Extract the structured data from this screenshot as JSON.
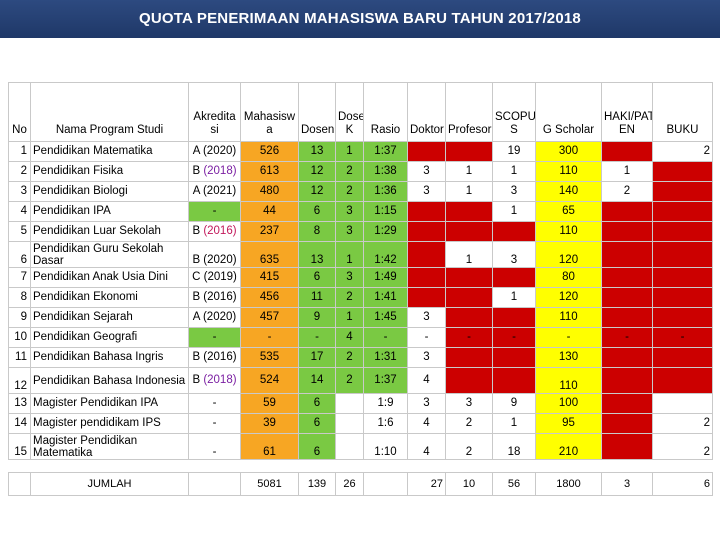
{
  "title": "QUOTA PENERIMAAN MAHASISWA BARU TAHUN 2017/2018",
  "headers": {
    "no": "No",
    "nama": "Nama Program Studi",
    "akreditasi": "Akredita si",
    "mahasiswa": "Mahasisw a",
    "dosen": "Dosen",
    "dosen_k": "Dosen K",
    "rasio": "Rasio",
    "doktor": "Doktor",
    "profesor": "Profesor",
    "scopus": "SCOPU S",
    "gscholar": "G Scholar",
    "hakipaten": "HAKI/PAT EN",
    "buku": "BUKU"
  },
  "rows": [
    {
      "no": "1",
      "nama": "Pendidikan Matematika",
      "akr": "A (2020)",
      "mhs": "526",
      "dosen": "13",
      "dk": "1",
      "rasio": "1:37",
      "doktor": "",
      "prof": "",
      "scopus": "19",
      "gs": "300",
      "haki": "",
      "buku": "2"
    },
    {
      "no": "2",
      "nama": "Pendidikan Fisika",
      "akr": "B (2018)",
      "mhs": "613",
      "dosen": "12",
      "dk": "2",
      "rasio": "1:38",
      "doktor": "3",
      "prof": "1",
      "scopus": "1",
      "gs": "110",
      "haki": "1",
      "buku": ""
    },
    {
      "no": "3",
      "nama": "Pendidikan Biologi",
      "akr": "A (2021)",
      "mhs": "480",
      "dosen": "12",
      "dk": "2",
      "rasio": "1:36",
      "doktor": "3",
      "prof": "1",
      "scopus": "3",
      "gs": "140",
      "haki": "2",
      "buku": ""
    },
    {
      "no": "4",
      "nama": "Pendidikan IPA",
      "akr": "-",
      "mhs": "44",
      "dosen": "6",
      "dk": "3",
      "rasio": "1:15",
      "doktor": "",
      "prof": "",
      "scopus": "1",
      "gs": "65",
      "haki": "",
      "buku": ""
    },
    {
      "no": "5",
      "nama": "Pendidikan Luar Sekolah",
      "akr": "B (2016)",
      "mhs": "237",
      "dosen": "8",
      "dk": "3",
      "rasio": "1:29",
      "doktor": "",
      "prof": "",
      "scopus": "",
      "gs": "110",
      "haki": "",
      "buku": ""
    },
    {
      "no": "6",
      "nama": "Pendidikan Guru Sekolah Dasar",
      "akr": "B (2020)",
      "mhs": "635",
      "dosen": "13",
      "dk": "1",
      "rasio": "1:42",
      "doktor": "",
      "prof": "1",
      "scopus": "3",
      "gs": "120",
      "haki": "",
      "buku": ""
    },
    {
      "no": "7",
      "nama": "Pendidikan Anak Usia Dini",
      "akr": "C (2019)",
      "mhs": "415",
      "dosen": "6",
      "dk": "3",
      "rasio": "1:49",
      "doktor": "",
      "prof": "",
      "scopus": "",
      "gs": "80",
      "haki": "",
      "buku": ""
    },
    {
      "no": "8",
      "nama": "Pendidikan Ekonomi",
      "akr": "B (2016)",
      "mhs": "456",
      "dosen": "11",
      "dk": "2",
      "rasio": "1:41",
      "doktor": "",
      "prof": "",
      "scopus": "1",
      "gs": "120",
      "haki": "",
      "buku": ""
    },
    {
      "no": "9",
      "nama": "Pendidikan Sejarah",
      "akr": "A (2020)",
      "mhs": "457",
      "dosen": "9",
      "dk": "1",
      "rasio": "1:45",
      "doktor": "3",
      "prof": "",
      "scopus": "",
      "gs": "110",
      "haki": "",
      "buku": ""
    },
    {
      "no": "10",
      "nama": "Pendidikan Geografi",
      "akr": "-",
      "mhs": "-",
      "dosen": "-",
      "dk": "4",
      "rasio": "-",
      "doktor": "-",
      "prof": "-",
      "scopus": "-",
      "gs": "-",
      "haki": "-",
      "buku": "-"
    },
    {
      "no": "11",
      "nama": "Pendidikan Bahasa Ingris",
      "akr": "B (2016)",
      "mhs": "535",
      "dosen": "17",
      "dk": "2",
      "rasio": "1:31",
      "doktor": "3",
      "prof": "",
      "scopus": "",
      "gs": "130",
      "haki": "",
      "buku": ""
    },
    {
      "no": "12",
      "nama": "Pendidikan Bahasa Indonesia",
      "akr": "B (2018)",
      "mhs": "524",
      "dosen": "14",
      "dk": "2",
      "rasio": "1:37",
      "doktor": "4",
      "prof": "",
      "scopus": "",
      "gs": "110",
      "haki": "",
      "buku": ""
    },
    {
      "no": "13",
      "nama": "Magister Pendidikan IPA",
      "akr": "-",
      "mhs": "59",
      "dosen": "6",
      "dk": "",
      "rasio": "1:9",
      "doktor": "3",
      "prof": "3",
      "scopus": "9",
      "gs": "100",
      "haki": "",
      "buku": ""
    },
    {
      "no": "14",
      "nama": "Magister pendidikam IPS",
      "akr": "-",
      "mhs": "39",
      "dosen": "6",
      "dk": "",
      "rasio": "1:6",
      "doktor": "4",
      "prof": "2",
      "scopus": "1",
      "gs": "95",
      "haki": "",
      "buku": "2"
    },
    {
      "no": "15",
      "nama": "Magister Pendidikan Matematika",
      "akr": "-",
      "mhs": "61",
      "dosen": "6",
      "dk": "",
      "rasio": "1:10",
      "doktor": "4",
      "prof": "2",
      "scopus": "18",
      "gs": "210",
      "haki": "",
      "buku": "2"
    }
  ],
  "total": {
    "label": "JUMLAH",
    "mhs": "5081",
    "dosen": "139",
    "dk": "26",
    "doktor": "27",
    "prof": "10",
    "scopus": "56",
    "gs": "1800",
    "haki": "3",
    "buku": "6"
  },
  "colors": {
    "orange": "#f7a623",
    "green": "#7ac943",
    "yellow": "#ffff00",
    "red": "#cc0000",
    "title_bar": "#1f3868"
  }
}
